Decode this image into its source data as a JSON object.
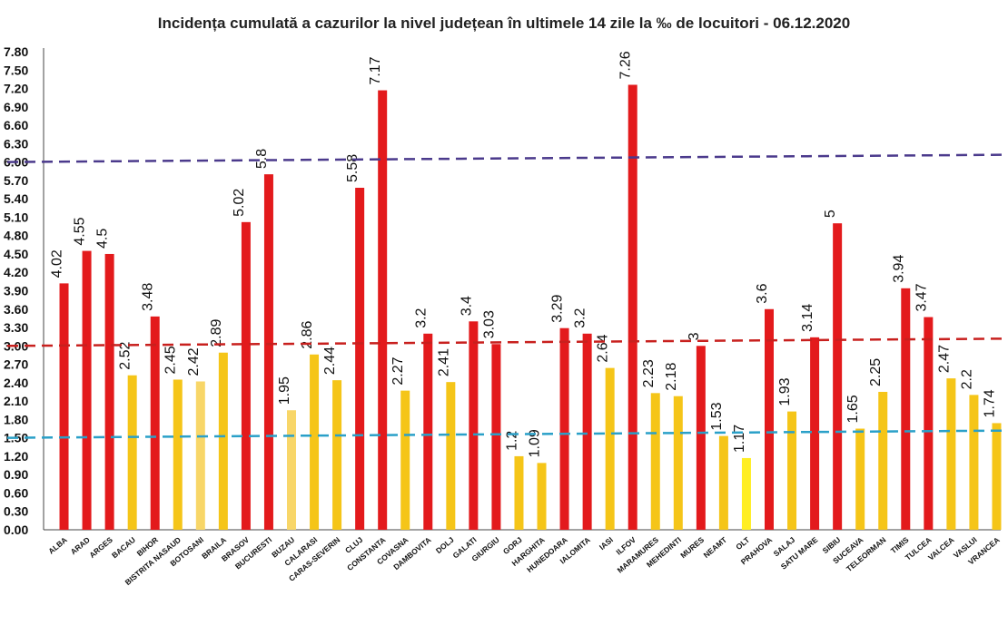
{
  "chart_data": {
    "type": "bar",
    "title": "Incidența cumulată a cazurilor la nivel județean în ultimele 14 zile la ‰ de locuitori - 06.12.2020",
    "categories": [
      "ALBA",
      "ARAD",
      "ARGES",
      "BACAU",
      "BIHOR",
      "BISTRITA NASAUD",
      "BOTOSANI",
      "BRAILA",
      "BRASOV",
      "BUCURESTI",
      "BUZAU",
      "CALARASI",
      "CARAS-SEVERIN",
      "CLUJ",
      "CONSTANTA",
      "COVASNA",
      "DAMBOVITA",
      "DOLJ",
      "GALATI",
      "GIURGIU",
      "GORJ",
      "HARGHITA",
      "HUNEDOARA",
      "IALOMITA",
      "IASI",
      "ILFOV",
      "MARAMURES",
      "MEHEDINTI",
      "MURES",
      "NEAMT",
      "OLT",
      "PRAHOVA",
      "SALAJ",
      "SATU MARE",
      "SIBIU",
      "SUCEAVA",
      "TELEORMAN",
      "TIMIS",
      "TULCEA",
      "VALCEA",
      "VASLUI",
      "VRANCEA"
    ],
    "values": [
      4.02,
      4.55,
      4.5,
      2.52,
      3.48,
      2.45,
      2.42,
      2.89,
      5.02,
      5.8,
      1.95,
      2.86,
      2.44,
      5.58,
      7.17,
      2.27,
      3.2,
      2.41,
      3.4,
      3.03,
      1.2,
      1.09,
      3.29,
      3.2,
      2.64,
      7.26,
      2.23,
      2.18,
      3,
      1.53,
      1.17,
      3.6,
      1.93,
      3.14,
      5,
      1.65,
      2.25,
      3.94,
      3.47,
      2.47,
      2.2,
      1.74
    ],
    "value_labels": [
      "4.02",
      "4.55",
      "4.5",
      "2.52",
      "3.48",
      "2.45",
      "2.42",
      "2.89",
      "5.02",
      "5.8",
      "1.95",
      "2.86",
      "2.44",
      "5.58",
      "7.17",
      "2.27",
      "3.2",
      "2.41",
      "3.4",
      "3.03",
      "1.2",
      "1.09",
      "3.29",
      "3.2",
      "2.64",
      "7.26",
      "2.23",
      "2.18",
      "3",
      "1.53",
      "1.17",
      "3.6",
      "1.93",
      "3.14",
      "5",
      "1.65",
      "2.25",
      "3.94",
      "3.47",
      "2.47",
      "2.2",
      "1.74"
    ],
    "bar_colors": [
      "#e31a1c",
      "#e31a1c",
      "#e31a1c",
      "#f5c518",
      "#e31a1c",
      "#f5c518",
      "#f8d668",
      "#f5c518",
      "#e31a1c",
      "#e31a1c",
      "#f8d668",
      "#f5c518",
      "#f5c518",
      "#e31a1c",
      "#e31a1c",
      "#f5c518",
      "#e31a1c",
      "#f5c518",
      "#e31a1c",
      "#e31a1c",
      "#f5c518",
      "#f5c518",
      "#e31a1c",
      "#e31a1c",
      "#f5c518",
      "#e31a1c",
      "#f5c518",
      "#f5c518",
      "#e31a1c",
      "#f5c518",
      "#ffee22",
      "#e31a1c",
      "#f5c518",
      "#e31a1c",
      "#e31a1c",
      "#f5c518",
      "#f5c518",
      "#e31a1c",
      "#e31a1c",
      "#f5c518",
      "#f5c518",
      "#f5c518"
    ],
    "ylim": [
      0,
      7.8
    ],
    "y_ticks": [
      0,
      0.3,
      0.6,
      0.9,
      1.2,
      1.5,
      1.8,
      2.1,
      2.4,
      2.7,
      3.0,
      3.3,
      3.6,
      3.9,
      4.2,
      4.5,
      4.8,
      5.1,
      5.4,
      5.7,
      6.0,
      6.3,
      6.6,
      6.9,
      7.2,
      7.5,
      7.8
    ],
    "y_tick_labels": [
      "0.00",
      "0.30",
      "0.60",
      "0.90",
      "1.20",
      "1.50",
      "1.80",
      "2.10",
      "2.40",
      "2.70",
      "3.00",
      "3.30",
      "3.60",
      "3.90",
      "4.20",
      "4.50",
      "4.80",
      "5.10",
      "5.40",
      "5.70",
      "6.00",
      "6.30",
      "6.60",
      "6.90",
      "7.20",
      "7.50",
      "7.80"
    ],
    "thresholds": [
      {
        "value": 6.0,
        "color": "#4b3a8c"
      },
      {
        "value": 3.0,
        "color": "#c8201e"
      },
      {
        "value": 1.5,
        "color": "#2aa0c8"
      }
    ],
    "grid": false,
    "legend": "none"
  }
}
